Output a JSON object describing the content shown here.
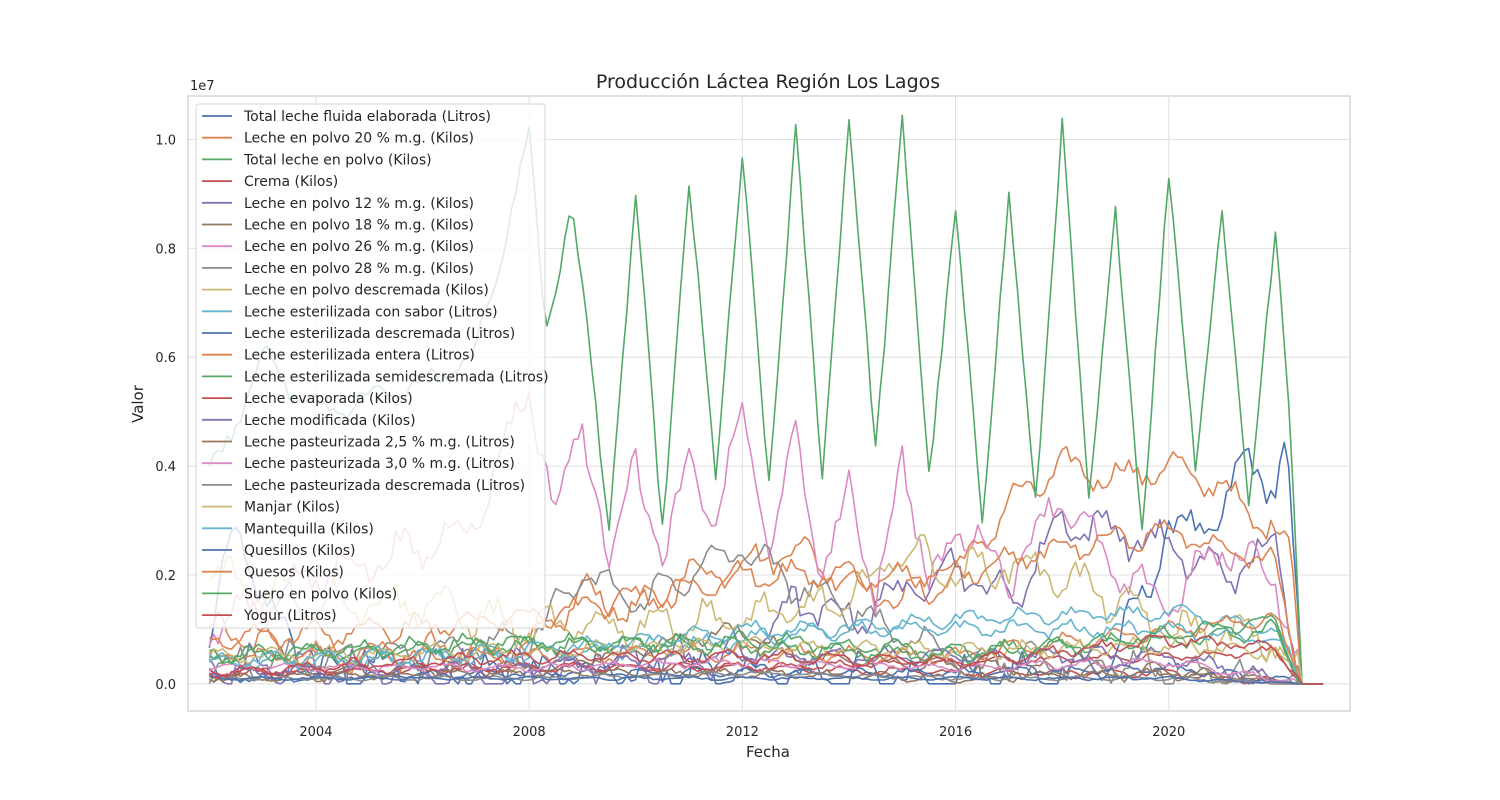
{
  "chart_data": {
    "type": "line",
    "title": "Producción Láctea Región Los Lagos",
    "xlabel": "Fecha",
    "ylabel": "Valor",
    "y_offset_label": "1e7",
    "xlim": [
      2001.6,
      2023.4
    ],
    "ylim": [
      -0.05,
      1.08
    ],
    "y_scale_note": "values in units of 1e7",
    "x_ticks": [
      2004,
      2008,
      2012,
      2016,
      2020
    ],
    "x_tick_labels": [
      "2004",
      "2008",
      "2012",
      "2016",
      "2020"
    ],
    "y_ticks": [
      0.0,
      0.2,
      0.4,
      0.6,
      0.8,
      1.0
    ],
    "y_tick_labels": [
      "0.0",
      "0.2",
      "0.4",
      "0.6",
      "0.8",
      "1.0"
    ],
    "grid": true,
    "legend_position": "upper-left",
    "x_start": 2002.0,
    "x_end_data": 2022.5,
    "x_end_zero": 2022.9,
    "series": [
      {
        "name": "Total leche fluida elaborada (Litros)",
        "color": "#4c72b0",
        "anchors": [
          [
            2002.0,
            0.06
          ],
          [
            2002.5,
            0.3
          ],
          [
            2003.0,
            0.15
          ],
          [
            2004,
            0.02
          ],
          [
            2006,
            0.03
          ],
          [
            2008,
            0.02
          ],
          [
            2012,
            0.02
          ],
          [
            2016,
            0.01
          ],
          [
            2018,
            0.02
          ],
          [
            2019,
            0.05
          ],
          [
            2020,
            0.28
          ],
          [
            2021,
            0.3
          ],
          [
            2021.5,
            0.43
          ],
          [
            2022,
            0.35
          ],
          [
            2022.2,
            0.42
          ],
          [
            2022.5,
            0.0
          ]
        ],
        "amp": 0.05
      },
      {
        "name": "Leche en polvo 20 % m.g. (Kilos)",
        "color": "#dd8452",
        "anchors": [
          [
            2002,
            0.1
          ],
          [
            2004,
            0.05
          ],
          [
            2006,
            0.06
          ],
          [
            2008,
            0.06
          ],
          [
            2009,
            0.17
          ],
          [
            2010,
            0.13
          ],
          [
            2011,
            0.2
          ],
          [
            2012,
            0.22
          ],
          [
            2013,
            0.25
          ],
          [
            2014,
            0.19
          ],
          [
            2015,
            0.15
          ],
          [
            2016,
            0.2
          ],
          [
            2017,
            0.33
          ],
          [
            2018,
            0.4
          ],
          [
            2019,
            0.38
          ],
          [
            2020,
            0.4
          ],
          [
            2021,
            0.36
          ],
          [
            2021.7,
            0.3
          ],
          [
            2022.3,
            0.25
          ],
          [
            2022.5,
            0.0
          ]
        ],
        "amp": 0.04
      },
      {
        "name": "Total leche en polvo (Kilos)",
        "color": "#55a868",
        "anchors": [
          [
            2002,
            0.38
          ],
          [
            2003,
            0.6
          ],
          [
            2004,
            0.5
          ],
          [
            2006,
            0.55
          ],
          [
            2007,
            0.6
          ],
          [
            2008,
            1.01
          ],
          [
            2008.3,
            0.65
          ],
          [
            2008.8,
            0.88
          ],
          [
            2009.5,
            0.3
          ],
          [
            2010,
            0.88
          ],
          [
            2010.5,
            0.3
          ],
          [
            2011,
            0.9
          ],
          [
            2011.5,
            0.4
          ],
          [
            2012,
            0.95
          ],
          [
            2012.5,
            0.38
          ],
          [
            2013,
            1.0
          ],
          [
            2013.5,
            0.4
          ],
          [
            2014,
            1.02
          ],
          [
            2014.5,
            0.45
          ],
          [
            2015,
            1.02
          ],
          [
            2015.5,
            0.4
          ],
          [
            2016,
            0.85
          ],
          [
            2016.5,
            0.32
          ],
          [
            2017,
            0.88
          ],
          [
            2017.5,
            0.35
          ],
          [
            2018,
            1.01
          ],
          [
            2018.5,
            0.35
          ],
          [
            2019,
            0.85
          ],
          [
            2019.5,
            0.3
          ],
          [
            2020,
            0.92
          ],
          [
            2020.5,
            0.42
          ],
          [
            2021,
            0.85
          ],
          [
            2021.5,
            0.35
          ],
          [
            2022,
            0.81
          ],
          [
            2022.3,
            0.45
          ],
          [
            2022.5,
            0.0
          ]
        ],
        "amp": 0.03
      },
      {
        "name": "Crema (Kilos)",
        "color": "#c44e52",
        "anchors": [
          [
            2002,
            0.02
          ],
          [
            2008,
            0.03
          ],
          [
            2012,
            0.03
          ],
          [
            2016,
            0.02
          ],
          [
            2020,
            0.02
          ],
          [
            2022.5,
            0.0
          ]
        ],
        "amp": 0.01
      },
      {
        "name": "Leche en polvo 12 % m.g. (Kilos)",
        "color": "#8172b3",
        "anchors": [
          [
            2002,
            0.03
          ],
          [
            2008,
            0.02
          ],
          [
            2012,
            0.05
          ],
          [
            2013,
            0.15
          ],
          [
            2014,
            0.12
          ],
          [
            2016,
            0.22
          ],
          [
            2017,
            0.15
          ],
          [
            2018,
            0.3
          ],
          [
            2019,
            0.28
          ],
          [
            2020,
            0.25
          ],
          [
            2021,
            0.2
          ],
          [
            2022,
            0.25
          ],
          [
            2022.5,
            0.0
          ]
        ],
        "amp": 0.05
      },
      {
        "name": "Leche en polvo 18 % m.g. (Kilos)",
        "color": "#937860",
        "anchors": [
          [
            2002,
            0.02
          ],
          [
            2008,
            0.03
          ],
          [
            2012,
            0.1
          ],
          [
            2013,
            0.05
          ],
          [
            2016,
            0.03
          ],
          [
            2020,
            0.02
          ],
          [
            2022.5,
            0.0
          ]
        ],
        "amp": 0.02
      },
      {
        "name": "Leche en polvo 26 % m.g. (Kilos)",
        "color": "#da8bc3",
        "anchors": [
          [
            2002,
            0.1
          ],
          [
            2004,
            0.2
          ],
          [
            2006,
            0.25
          ],
          [
            2007,
            0.3
          ],
          [
            2008,
            0.55
          ],
          [
            2008.5,
            0.3
          ],
          [
            2009,
            0.5
          ],
          [
            2009.5,
            0.2
          ],
          [
            2010,
            0.45
          ],
          [
            2010.5,
            0.18
          ],
          [
            2011,
            0.45
          ],
          [
            2011.5,
            0.25
          ],
          [
            2012,
            0.55
          ],
          [
            2012.5,
            0.2
          ],
          [
            2013,
            0.5
          ],
          [
            2013.5,
            0.15
          ],
          [
            2014,
            0.4
          ],
          [
            2014.5,
            0.12
          ],
          [
            2015,
            0.45
          ],
          [
            2015.5,
            0.15
          ],
          [
            2016,
            0.3
          ],
          [
            2017,
            0.2
          ],
          [
            2018,
            0.35
          ],
          [
            2019,
            0.2
          ],
          [
            2020,
            0.15
          ],
          [
            2021,
            0.25
          ],
          [
            2022,
            0.2
          ],
          [
            2022.5,
            0.0
          ]
        ],
        "amp": 0.05
      },
      {
        "name": "Leche en polvo 28 % m.g. (Kilos)",
        "color": "#8c8c8c",
        "anchors": [
          [
            2002,
            0.03
          ],
          [
            2008,
            0.08
          ],
          [
            2009,
            0.2
          ],
          [
            2010,
            0.15
          ],
          [
            2012,
            0.25
          ],
          [
            2013,
            0.18
          ],
          [
            2016,
            0.05
          ],
          [
            2020,
            0.03
          ],
          [
            2022.5,
            0.0
          ]
        ],
        "amp": 0.04
      },
      {
        "name": "Leche en polvo descremada (Kilos)",
        "color": "#ccb974",
        "anchors": [
          [
            2002,
            0.2
          ],
          [
            2004,
            0.15
          ],
          [
            2006,
            0.15
          ],
          [
            2008,
            0.1
          ],
          [
            2012,
            0.12
          ],
          [
            2014,
            0.15
          ],
          [
            2015,
            0.25
          ],
          [
            2016,
            0.2
          ],
          [
            2017,
            0.22
          ],
          [
            2018,
            0.2
          ],
          [
            2019,
            0.15
          ],
          [
            2020,
            0.1
          ],
          [
            2022,
            0.08
          ],
          [
            2022.5,
            0.0
          ]
        ],
        "amp": 0.05
      },
      {
        "name": "Leche esterilizada con sabor (Litros)",
        "color": "#64b5cd",
        "anchors": [
          [
            2002,
            0.04
          ],
          [
            2008,
            0.05
          ],
          [
            2012,
            0.08
          ],
          [
            2016,
            0.12
          ],
          [
            2020,
            0.13
          ],
          [
            2022,
            0.1
          ],
          [
            2022.5,
            0.0
          ]
        ],
        "amp": 0.02
      },
      {
        "name": "Leche esterilizada descremada (Litros)",
        "color": "#4c72b0",
        "anchors": [
          [
            2002,
            0.01
          ],
          [
            2008,
            0.02
          ],
          [
            2012,
            0.02
          ],
          [
            2016,
            0.02
          ],
          [
            2020,
            0.03
          ],
          [
            2022.5,
            0.0
          ]
        ],
        "amp": 0.01
      },
      {
        "name": "Leche esterilizada entera (Litros)",
        "color": "#dd8452",
        "anchors": [
          [
            2002,
            0.05
          ],
          [
            2008,
            0.05
          ],
          [
            2012,
            0.06
          ],
          [
            2016,
            0.05
          ],
          [
            2020,
            0.1
          ],
          [
            2022,
            0.12
          ],
          [
            2022.5,
            0.0
          ]
        ],
        "amp": 0.02
      },
      {
        "name": "Leche esterilizada semidescremada (Litros)",
        "color": "#55a868",
        "anchors": [
          [
            2002,
            0.05
          ],
          [
            2008,
            0.07
          ],
          [
            2012,
            0.08
          ],
          [
            2016,
            0.06
          ],
          [
            2020,
            0.08
          ],
          [
            2022,
            0.1
          ],
          [
            2022.5,
            0.0
          ]
        ],
        "amp": 0.02
      },
      {
        "name": "Leche evaporada (Kilos)",
        "color": "#c44e52",
        "anchors": [
          [
            2002,
            0.02
          ],
          [
            2008,
            0.03
          ],
          [
            2012,
            0.03
          ],
          [
            2016,
            0.04
          ],
          [
            2020,
            0.05
          ],
          [
            2022,
            0.06
          ],
          [
            2022.5,
            0.0
          ]
        ],
        "amp": 0.01
      },
      {
        "name": "Leche modificada (Kilos)",
        "color": "#8172b3",
        "anchors": [
          [
            2002,
            0.02
          ],
          [
            2008,
            0.03
          ],
          [
            2012,
            0.05
          ],
          [
            2016,
            0.05
          ],
          [
            2020,
            0.05
          ],
          [
            2022.5,
            0.0
          ]
        ],
        "amp": 0.02
      },
      {
        "name": "Leche pasteurizada 2,5 % m.g. (Litros)",
        "color": "#937860",
        "anchors": [
          [
            2002,
            0.01
          ],
          [
            2008,
            0.02
          ],
          [
            2012,
            0.02
          ],
          [
            2016,
            0.01
          ],
          [
            2020,
            0.02
          ],
          [
            2022.5,
            0.0
          ]
        ],
        "amp": 0.01
      },
      {
        "name": "Leche pasteurizada 3,0 % m.g. (Litros)",
        "color": "#da8bc3",
        "anchors": [
          [
            2002,
            0.03
          ],
          [
            2008,
            0.03
          ],
          [
            2012,
            0.04
          ],
          [
            2016,
            0.03
          ],
          [
            2020,
            0.04
          ],
          [
            2022.5,
            0.0
          ]
        ],
        "amp": 0.01
      },
      {
        "name": "Leche pasteurizada descremada (Litros)",
        "color": "#8c8c8c",
        "anchors": [
          [
            2002,
            0.01
          ],
          [
            2008,
            0.01
          ],
          [
            2012,
            0.02
          ],
          [
            2016,
            0.01
          ],
          [
            2020,
            0.01
          ],
          [
            2022.5,
            0.0
          ]
        ],
        "amp": 0.005
      },
      {
        "name": "Manjar (Kilos)",
        "color": "#ccb974",
        "anchors": [
          [
            2002,
            0.05
          ],
          [
            2008,
            0.06
          ],
          [
            2012,
            0.07
          ],
          [
            2016,
            0.06
          ],
          [
            2020,
            0.07
          ],
          [
            2022,
            0.06
          ],
          [
            2022.5,
            0.0
          ]
        ],
        "amp": 0.02
      },
      {
        "name": "Mantequilla (Kilos)",
        "color": "#64b5cd",
        "anchors": [
          [
            2002,
            0.04
          ],
          [
            2008,
            0.06
          ],
          [
            2012,
            0.1
          ],
          [
            2016,
            0.1
          ],
          [
            2020,
            0.1
          ],
          [
            2022,
            0.08
          ],
          [
            2022.5,
            0.0
          ]
        ],
        "amp": 0.02
      },
      {
        "name": "Quesillos (Kilos)",
        "color": "#4c72b0",
        "anchors": [
          [
            2002,
            0.01
          ],
          [
            2008,
            0.01
          ],
          [
            2012,
            0.01
          ],
          [
            2016,
            0.01
          ],
          [
            2020,
            0.01
          ],
          [
            2022.5,
            0.0
          ]
        ],
        "amp": 0.004
      },
      {
        "name": "Quesos (Kilos)",
        "color": "#dd8452",
        "anchors": [
          [
            2002,
            0.08
          ],
          [
            2008,
            0.12
          ],
          [
            2012,
            0.2
          ],
          [
            2016,
            0.2
          ],
          [
            2018,
            0.25
          ],
          [
            2020,
            0.28
          ],
          [
            2022,
            0.22
          ],
          [
            2022.5,
            0.0
          ]
        ],
        "amp": 0.03
      },
      {
        "name": "Suero en polvo (Kilos)",
        "color": "#55a868",
        "anchors": [
          [
            2002,
            0.05
          ],
          [
            2008,
            0.08
          ],
          [
            2012,
            0.07
          ],
          [
            2016,
            0.05
          ],
          [
            2020,
            0.09
          ],
          [
            2022,
            0.12
          ],
          [
            2022.5,
            0.0
          ]
        ],
        "amp": 0.02
      },
      {
        "name": "Yogur (Litros)",
        "color": "#c44e52",
        "anchors": [
          [
            2002,
            0.02
          ],
          [
            2008,
            0.05
          ],
          [
            2012,
            0.05
          ],
          [
            2016,
            0.04
          ],
          [
            2020,
            0.08
          ],
          [
            2022,
            0.07
          ],
          [
            2022.5,
            0.0
          ]
        ],
        "amp": 0.015
      }
    ]
  }
}
